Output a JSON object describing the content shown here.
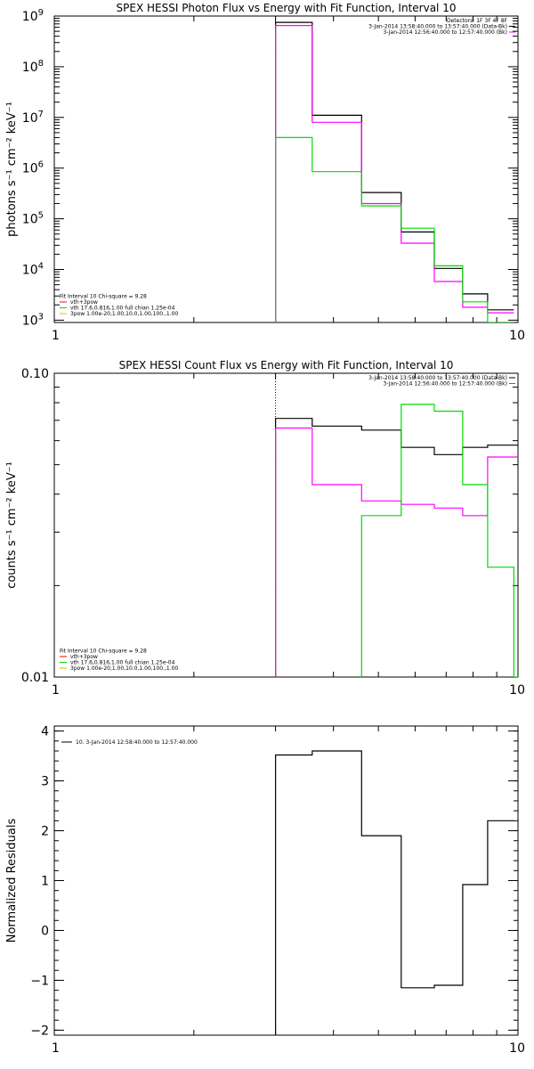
{
  "chart_data": [
    {
      "type": "line",
      "title": "SPEX HESSI Photon Flux vs Energy with Fit Function, Interval 10",
      "ylabel": "photons s⁻¹ cm⁻² keV⁻¹",
      "xlim": [
        1,
        10
      ],
      "ylim": [
        900,
        1000000000
      ],
      "xscale": "log",
      "yscale": "log",
      "xticks": [
        {
          "v": 1,
          "label": "1"
        },
        {
          "v": 10,
          "label": "10"
        }
      ],
      "yticks": [
        {
          "v": 1000,
          "base": "10",
          "exp": "3"
        },
        {
          "v": 10000,
          "base": "10",
          "exp": "4"
        },
        {
          "v": 100000,
          "base": "10",
          "exp": "5"
        },
        {
          "v": 1000000,
          "base": "10",
          "exp": "6"
        },
        {
          "v": 10000000,
          "base": "10",
          "exp": "7"
        },
        {
          "v": 100000000,
          "base": "10",
          "exp": "8"
        },
        {
          "v": 1000000000,
          "base": "10",
          "exp": "9"
        }
      ],
      "vline": 3.0,
      "edges": [
        3.0,
        3.6,
        4.6,
        5.6,
        6.6,
        7.6,
        8.6,
        9.8
      ],
      "series": [
        {
          "color": "#000000",
          "values": [
            750000000,
            11000000,
            330000,
            55000,
            10500,
            3300,
            1600
          ]
        },
        {
          "color": "#ff00ff",
          "values": [
            650000000,
            8000000,
            200000,
            33000,
            5800,
            1800,
            1400
          ]
        },
        {
          "color": "#00dd00",
          "values": [
            4000000,
            850000,
            180000,
            65000,
            11800,
            2300,
            900
          ]
        }
      ],
      "legend_right": [
        {
          "text": "Detectors: 1F 3F 4F 8F",
          "color": ""
        },
        {
          "text": "3-Jan-2014 13:58:40.000 to 13:57:40.000 (Data-Bk)",
          "color": "#000000"
        },
        {
          "text": "3-Jan-2014 12:56:40.000 to 12:57:40.000 (Bk)",
          "color": "#ff00ff"
        }
      ],
      "legend_left": [
        {
          "text": "Fit Interval 10   Chi-square = 9.28",
          "color": ""
        },
        {
          "text": "vth+3pow",
          "color": "#ff0000"
        },
        {
          "text": "vth 17.6,0.816,1.00  full chian 1.25e-04",
          "color": "#00dd00"
        },
        {
          "text": "3pow 1.00e-20,1.00,10.0,1.00,100.,1.00",
          "color": "#ffaa00"
        }
      ]
    },
    {
      "type": "line",
      "title": "SPEX HESSI Count Flux vs Energy with Fit Function, Interval 10",
      "ylabel": "counts s⁻¹ cm⁻² keV⁻¹",
      "xlim": [
        1,
        10
      ],
      "ylim": [
        0.01,
        0.1
      ],
      "xscale": "log",
      "yscale": "log",
      "xticks": [
        {
          "v": 1,
          "label": "1"
        },
        {
          "v": 10,
          "label": "10"
        }
      ],
      "yticks": [
        {
          "v": 0.01,
          "label": "0.01"
        },
        {
          "v": 0.1,
          "label": "0.10"
        }
      ],
      "vline": 3.0,
      "edges": [
        3.0,
        3.6,
        4.6,
        5.6,
        6.6,
        7.6,
        8.6,
        9.8,
        10.0
      ],
      "series": [
        {
          "color": "#000000",
          "values": [
            0.071,
            0.067,
            0.065,
            0.057,
            0.054,
            0.057,
            0.058,
            0.058
          ]
        },
        {
          "color": "#ff00ff",
          "values": [
            0.066,
            0.043,
            0.038,
            0.037,
            0.036,
            0.034,
            0.053,
            0.053
          ]
        },
        {
          "color": "#00dd00",
          "start": 2,
          "values": [
            null,
            null,
            0.034,
            0.079,
            0.075,
            0.043,
            0.023,
            0.01
          ]
        }
      ],
      "legend_right": [
        {
          "text": "3-Jan-2014 13:58:40.000 to 13:57:40.000 (Data-Bk)",
          "color": "#000000"
        },
        {
          "text": "3-Jan-2014 12:56:40.000 to 12:57:40.000 (Bk)",
          "color": "#ff00ff"
        }
      ],
      "legend_left": [
        {
          "text": "Fit Interval 10   Chi-square = 9.28",
          "color": ""
        },
        {
          "text": "vth+3pow",
          "color": "#ff0000"
        },
        {
          "text": "vth 17.6,0.816,1.00  full chian 1.25e-04",
          "color": "#00dd00"
        },
        {
          "text": "3pow 1.00e-20,1.00,10.0,1.00,100.,1.00",
          "color": "#ffaa00"
        }
      ]
    },
    {
      "type": "line",
      "title": "",
      "ylabel": "Normalized Residuals",
      "xlim": [
        1,
        10
      ],
      "ylim": [
        -2.1,
        4.1
      ],
      "xscale": "log",
      "yscale": "linear",
      "xticks": [
        {
          "v": 1,
          "label": "1"
        },
        {
          "v": 10,
          "label": "10"
        }
      ],
      "yticks": [
        {
          "v": -2,
          "label": "−2"
        },
        {
          "v": -1,
          "label": "−1"
        },
        {
          "v": 0,
          "label": "0"
        },
        {
          "v": 1,
          "label": "1"
        },
        {
          "v": 2,
          "label": "2"
        },
        {
          "v": 3,
          "label": "3"
        },
        {
          "v": 4,
          "label": "4"
        }
      ],
      "edges": [
        3.0,
        3.6,
        4.6,
        5.6,
        6.6,
        7.6,
        8.6,
        9.8
      ],
      "series": [
        {
          "color": "#000000",
          "drop_to_bottom": true,
          "values": [
            3.52,
            3.6,
            1.9,
            -1.15,
            -1.1,
            0.92,
            2.2
          ]
        }
      ],
      "legend_right": [],
      "legend_left": [
        {
          "text": "10.  3-Jan-2014 12:58:40.000 to 12:57:40.000",
          "color": "#000000"
        }
      ]
    }
  ]
}
